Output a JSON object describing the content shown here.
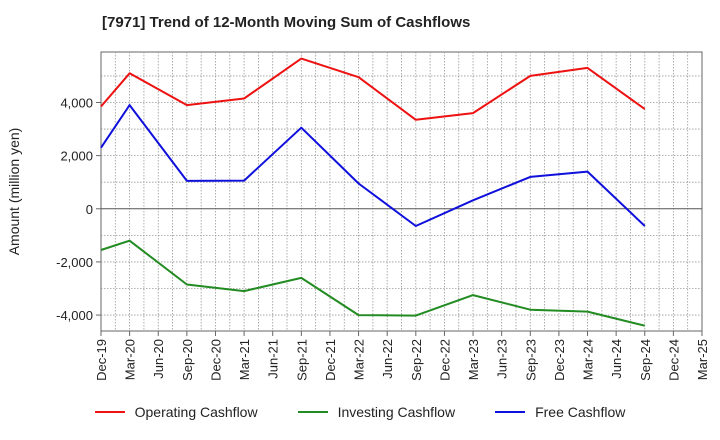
{
  "title": "[7971]  Trend of 12-Month Moving Sum of Cashflows",
  "chart_data": {
    "type": "line",
    "title": "[7971]  Trend of 12-Month Moving Sum of Cashflows",
    "xlabel": "",
    "ylabel": "Amount (million yen)",
    "ylim": [
      -4600,
      5900
    ],
    "yticks": [
      -4000,
      -2000,
      0,
      2000,
      4000
    ],
    "ytick_labels": [
      "-4,000",
      "-2,000",
      "0",
      "2,000",
      "4,000"
    ],
    "categories": [
      "Dec-19",
      "Mar-20",
      "Jun-20",
      "Sep-20",
      "Dec-20",
      "Mar-21",
      "Jun-21",
      "Sep-21",
      "Dec-21",
      "Mar-22",
      "Jun-22",
      "Sep-22",
      "Dec-22",
      "Mar-23",
      "Jun-23",
      "Sep-23",
      "Dec-23",
      "Mar-24",
      "Jun-24",
      "Sep-24",
      "Dec-24",
      "Mar-25"
    ],
    "grid": true,
    "legend_position": "bottom",
    "series": [
      {
        "name": "Operating Cashflow",
        "color": "#ee1111",
        "values": [
          3850,
          5100,
          null,
          3900,
          null,
          4150,
          null,
          5650,
          null,
          4950,
          null,
          3350,
          null,
          3600,
          null,
          5000,
          null,
          5300,
          null,
          3750,
          null,
          null
        ]
      },
      {
        "name": "Investing Cashflow",
        "color": "#228b22",
        "values": [
          -1550,
          -1200,
          null,
          -2850,
          null,
          -3100,
          null,
          -2600,
          null,
          -4000,
          null,
          -4020,
          null,
          -3250,
          null,
          -3800,
          null,
          -3870,
          null,
          -4400,
          null,
          null
        ]
      },
      {
        "name": "Free Cashflow",
        "color": "#1010dd",
        "values": [
          2300,
          3900,
          null,
          1050,
          null,
          1060,
          null,
          3050,
          null,
          950,
          null,
          -650,
          null,
          320,
          null,
          1200,
          null,
          1400,
          null,
          -650,
          null,
          null
        ]
      }
    ]
  }
}
